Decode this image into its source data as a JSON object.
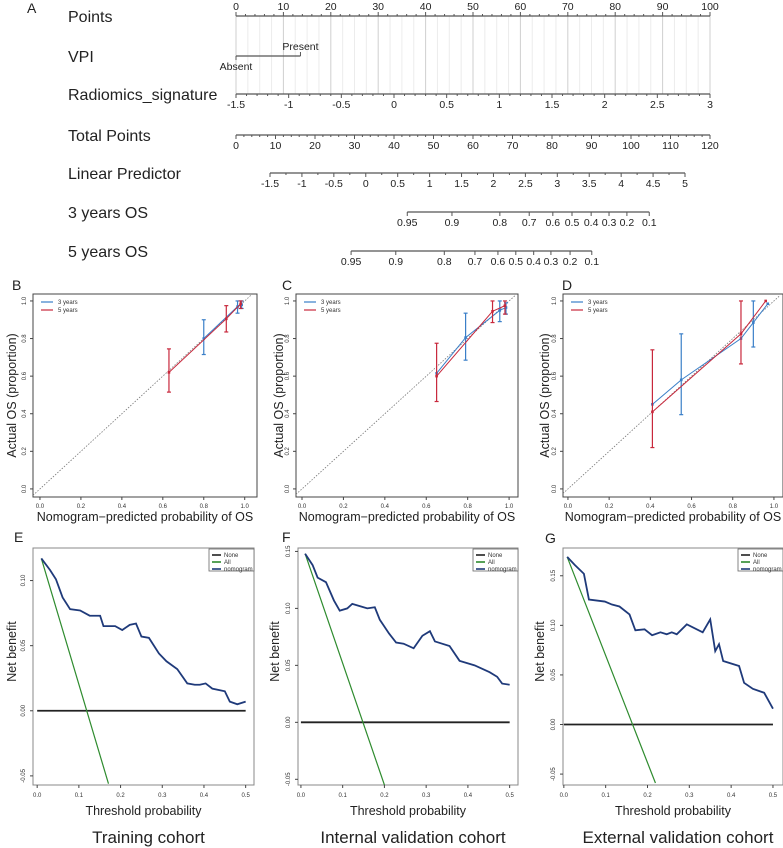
{
  "panel_labels": [
    "A",
    "B",
    "C",
    "D",
    "E",
    "F",
    "G"
  ],
  "chart_data": [
    {
      "type": "nomogram",
      "panel": "A",
      "rows": [
        {
          "name": "Points",
          "min": 0,
          "max": 100,
          "ticks": [
            "0",
            "10",
            "20",
            "30",
            "40",
            "50",
            "60",
            "70",
            "80",
            "90",
            "100"
          ]
        },
        {
          "name": "VPI",
          "levels": [
            {
              "label": "Absent",
              "points": 0
            },
            {
              "label": "Present",
              "points": 13.6
            }
          ]
        },
        {
          "name": "Radiomics_signature",
          "min": -1.5,
          "max": 3,
          "ticks": [
            "-1.5",
            "-1",
            "-0.5",
            "0",
            "0.5",
            "1",
            "1.5",
            "2",
            "2.5",
            "3"
          ]
        },
        {
          "name": "Total Points",
          "min": 0,
          "max": 120,
          "ticks": [
            "0",
            "10",
            "20",
            "30",
            "40",
            "50",
            "60",
            "70",
            "80",
            "90",
            "100",
            "110",
            "120"
          ]
        },
        {
          "name": "Linear Predictor",
          "min": -1.5,
          "max": 5,
          "ticks": [
            "-1.5",
            "-1",
            "-0.5",
            "0",
            "0.5",
            "1",
            "1.5",
            "2",
            "2.5",
            "3",
            "3.5",
            "4",
            "4.5",
            "5"
          ]
        },
        {
          "name": "3 years OS",
          "ticks": [
            {
              "label": "0.95",
              "lp": 0.65
            },
            {
              "label": "0.9",
              "lp": 1.35
            },
            {
              "label": "0.8",
              "lp": 2.1
            },
            {
              "label": "0.7",
              "lp": 2.56
            },
            {
              "label": "0.6",
              "lp": 2.93
            },
            {
              "label": "0.5",
              "lp": 3.23
            },
            {
              "label": "0.4",
              "lp": 3.53
            },
            {
              "label": "0.3",
              "lp": 3.81
            },
            {
              "label": "0.2",
              "lp": 4.09
            },
            {
              "label": "0.1",
              "lp": 4.44
            }
          ]
        },
        {
          "name": "5 years OS",
          "ticks": [
            {
              "label": "0.95",
              "lp": -0.23
            },
            {
              "label": "0.9",
              "lp": 0.47
            },
            {
              "label": "0.8",
              "lp": 1.23
            },
            {
              "label": "0.7",
              "lp": 1.71
            },
            {
              "label": "0.6",
              "lp": 2.07
            },
            {
              "label": "0.5",
              "lp": 2.35
            },
            {
              "label": "0.4",
              "lp": 2.63
            },
            {
              "label": "0.3",
              "lp": 2.9
            },
            {
              "label": "0.2",
              "lp": 3.2
            },
            {
              "label": "0.1",
              "lp": 3.54
            }
          ]
        }
      ]
    },
    {
      "type": "scatter",
      "panel": "B",
      "xlabel": "Nomogram−predicted probability of OS",
      "ylabel": "Actual OS (proportion)",
      "xlim": [
        -0.034,
        1.06
      ],
      "ylim": [
        -0.043,
        1.037
      ],
      "xticks": [
        "0.0",
        "0.2",
        "0.4",
        "0.6",
        "0.8",
        "1.0"
      ],
      "yticks": [
        "0.0",
        "0.2",
        "0.4",
        "0.6",
        "0.8",
        "1.0"
      ],
      "legend": [
        "3 years",
        "5 years"
      ],
      "legend_position": "top-left",
      "series": [
        {
          "name": "3 years",
          "color": "#3a7fc8",
          "points": [
            {
              "x": 0.8,
              "y": 0.8,
              "lo": 0.715,
              "hi": 0.9
            },
            {
              "x": 0.965,
              "y": 0.97,
              "lo": 0.935,
              "hi": 1.0
            },
            {
              "x": 0.985,
              "y": 0.98,
              "lo": 0.96,
              "hi": 1.0
            }
          ]
        },
        {
          "name": "5 years",
          "color": "#c8283c",
          "points": [
            {
              "x": 0.63,
              "y": 0.62,
              "lo": 0.515,
              "hi": 0.745
            },
            {
              "x": 0.91,
              "y": 0.905,
              "lo": 0.835,
              "hi": 0.975
            },
            {
              "x": 0.98,
              "y": 0.985,
              "lo": 0.96,
              "hi": 1.0
            }
          ]
        }
      ]
    },
    {
      "type": "scatter",
      "panel": "C",
      "xlabel": "Nomogram−predicted probability of OS",
      "ylabel": "Actual OS (proportion)",
      "xlim": [
        -0.029,
        1.043
      ],
      "ylim": [
        -0.043,
        1.037
      ],
      "xticks": [
        "0.0",
        "0.2",
        "0.4",
        "0.6",
        "0.8",
        "1.0"
      ],
      "yticks": [
        "0.0",
        "0.2",
        "0.4",
        "0.6",
        "0.8",
        "1.0"
      ],
      "legend": [
        "3 years",
        "5 years"
      ],
      "legend_position": "top-left",
      "series": [
        {
          "name": "3 years",
          "color": "#3a7fc8",
          "points": [
            {
              "x": 0.65,
              "y": 0.615
            },
            {
              "x": 0.79,
              "y": 0.805,
              "lo": 0.685,
              "hi": 0.935
            },
            {
              "x": 0.955,
              "y": 0.95,
              "lo": 0.89,
              "hi": 1.0
            },
            {
              "x": 0.985,
              "y": 0.965,
              "lo": 0.93,
              "hi": 0.99
            }
          ]
        },
        {
          "name": "5 years",
          "color": "#c8283c",
          "points": [
            {
              "x": 0.65,
              "y": 0.6,
              "lo": 0.465,
              "hi": 0.775
            },
            {
              "x": 0.92,
              "y": 0.945,
              "lo": 0.885,
              "hi": 1.0
            },
            {
              "x": 0.98,
              "y": 0.975,
              "lo": 0.93,
              "hi": 1.0
            }
          ]
        }
      ]
    },
    {
      "type": "scatter",
      "panel": "D",
      "xlabel": "Nomogram−predicted probability of OS",
      "ylabel": "Actual OS (proportion)",
      "xlim": [
        -0.024,
        1.044
      ],
      "ylim": [
        -0.043,
        1.037
      ],
      "xticks": [
        "0.0",
        "0.2",
        "0.4",
        "0.6",
        "0.8",
        "1.0"
      ],
      "yticks": [
        "0.0",
        "0.2",
        "0.4",
        "0.6",
        "0.8",
        "1.0"
      ],
      "legend": [
        "3 years",
        "5 years"
      ],
      "legend_position": "top-left",
      "series": [
        {
          "name": "3 years",
          "color": "#3a7fc8",
          "points": [
            {
              "x": 0.41,
              "y": 0.45
            },
            {
              "x": 0.55,
              "y": 0.58,
              "lo": 0.395,
              "hi": 0.825
            },
            {
              "x": 0.84,
              "y": 0.8
            },
            {
              "x": 0.9,
              "y": 0.885,
              "lo": 0.755,
              "hi": 1.0
            },
            {
              "x": 0.97,
              "y": 0.985
            }
          ]
        },
        {
          "name": "5 years",
          "color": "#c8283c",
          "points": [
            {
              "x": 0.41,
              "y": 0.41,
              "lo": 0.22,
              "hi": 0.74
            },
            {
              "x": 0.84,
              "y": 0.825,
              "lo": 0.665,
              "hi": 1.0
            },
            {
              "x": 0.96,
              "y": 1.0
            }
          ]
        }
      ]
    },
    {
      "type": "line",
      "panel": "E",
      "caption": "Training cohort",
      "xlabel": "Threshold probability",
      "ylabel": "Net benefit",
      "xlim": [
        -0.01,
        0.52
      ],
      "ylim": [
        -0.057,
        0.125
      ],
      "xticks": [
        "0.0",
        "0.1",
        "0.2",
        "0.3",
        "0.4",
        "0.5"
      ],
      "yticks": [
        "-0.05",
        "0.00",
        "0.05",
        "0.10"
      ],
      "legend_position": "top-right",
      "series": [
        {
          "name": "None",
          "color": "#222222",
          "points": [
            [
              0,
              0
            ],
            [
              0.5,
              0
            ]
          ]
        },
        {
          "name": "All",
          "color": "#2e8b2e",
          "points": [
            [
              0.01,
              0.117
            ],
            [
              0.171,
              -0.056
            ]
          ]
        },
        {
          "name": "nomogram",
          "color": "#1f3a7a",
          "points": [
            [
              0.01,
              0.117
            ],
            [
              0.031,
              0.108
            ],
            [
              0.045,
              0.101
            ],
            [
              0.061,
              0.087
            ],
            [
              0.079,
              0.078
            ],
            [
              0.103,
              0.077
            ],
            [
              0.126,
              0.073
            ],
            [
              0.151,
              0.073
            ],
            [
              0.159,
              0.065
            ],
            [
              0.187,
              0.065
            ],
            [
              0.204,
              0.062
            ],
            [
              0.222,
              0.066
            ],
            [
              0.237,
              0.067
            ],
            [
              0.25,
              0.057
            ],
            [
              0.268,
              0.056
            ],
            [
              0.292,
              0.044
            ],
            [
              0.31,
              0.038
            ],
            [
              0.336,
              0.032
            ],
            [
              0.36,
              0.021
            ],
            [
              0.378,
              0.02
            ],
            [
              0.39,
              0.02
            ],
            [
              0.404,
              0.021
            ],
            [
              0.42,
              0.017
            ],
            [
              0.45,
              0.015
            ],
            [
              0.462,
              0.007
            ],
            [
              0.48,
              0.005
            ],
            [
              0.5,
              0.007
            ]
          ]
        }
      ]
    },
    {
      "type": "line",
      "panel": "F",
      "caption": "Internal validation cohort",
      "xlabel": "Threshold probability",
      "ylabel": "Net benefit",
      "xlim": [
        -0.007,
        0.52
      ],
      "ylim": [
        -0.055,
        0.153
      ],
      "xticks": [
        "0.0",
        "0.1",
        "0.2",
        "0.3",
        "0.4",
        "0.5"
      ],
      "yticks": [
        "-0.05",
        "0.00",
        "0.05",
        "0.10",
        "0.15"
      ],
      "legend_position": "top-right",
      "series": [
        {
          "name": "None",
          "color": "#222222",
          "points": [
            [
              0,
              0
            ],
            [
              0.5,
              0
            ]
          ]
        },
        {
          "name": "All",
          "color": "#2e8b2e",
          "points": [
            [
              0.01,
              0.148
            ],
            [
              0.201,
              -0.056
            ]
          ]
        },
        {
          "name": "nomogram",
          "color": "#1f3a7a",
          "points": [
            [
              0.01,
              0.148
            ],
            [
              0.028,
              0.138
            ],
            [
              0.04,
              0.127
            ],
            [
              0.06,
              0.123
            ],
            [
              0.079,
              0.107
            ],
            [
              0.093,
              0.098
            ],
            [
              0.111,
              0.1
            ],
            [
              0.123,
              0.104
            ],
            [
              0.141,
              0.102
            ],
            [
              0.159,
              0.1
            ],
            [
              0.177,
              0.101
            ],
            [
              0.189,
              0.09
            ],
            [
              0.211,
              0.078
            ],
            [
              0.228,
              0.07
            ],
            [
              0.246,
              0.069
            ],
            [
              0.27,
              0.065
            ],
            [
              0.291,
              0.076
            ],
            [
              0.309,
              0.08
            ],
            [
              0.321,
              0.071
            ],
            [
              0.356,
              0.067
            ],
            [
              0.38,
              0.054
            ],
            [
              0.416,
              0.05
            ],
            [
              0.452,
              0.044
            ],
            [
              0.47,
              0.04
            ],
            [
              0.482,
              0.034
            ],
            [
              0.5,
              0.033
            ]
          ]
        }
      ]
    },
    {
      "type": "line",
      "panel": "G",
      "caption": "External  validation cohort",
      "xlabel": "Threshold probability",
      "ylabel": "Net benefit",
      "xlim": [
        -0.002,
        0.524
      ],
      "ylim": [
        -0.061,
        0.178
      ],
      "xticks": [
        "0.0",
        "0.1",
        "0.2",
        "0.3",
        "0.4",
        "0.5"
      ],
      "yticks": [
        "-0.05",
        "0.00",
        "0.05",
        "0.10",
        "0.15"
      ],
      "legend_position": "top-right",
      "series": [
        {
          "name": "None",
          "color": "#222222",
          "points": [
            [
              0,
              0
            ],
            [
              0.5,
              0
            ]
          ]
        },
        {
          "name": "All",
          "color": "#2e8b2e",
          "points": [
            [
              0.008,
              0.169
            ],
            [
              0.219,
              -0.059
            ]
          ]
        },
        {
          "name": "nomogram",
          "color": "#1f3a7a",
          "points": [
            [
              0.008,
              0.169
            ],
            [
              0.026,
              0.161
            ],
            [
              0.048,
              0.152
            ],
            [
              0.06,
              0.126
            ],
            [
              0.098,
              0.124
            ],
            [
              0.115,
              0.121
            ],
            [
              0.133,
              0.119
            ],
            [
              0.157,
              0.111
            ],
            [
              0.171,
              0.095
            ],
            [
              0.193,
              0.096
            ],
            [
              0.211,
              0.09
            ],
            [
              0.231,
              0.093
            ],
            [
              0.246,
              0.091
            ],
            [
              0.258,
              0.093
            ],
            [
              0.27,
              0.091
            ],
            [
              0.294,
              0.101
            ],
            [
              0.332,
              0.093
            ],
            [
              0.35,
              0.106
            ],
            [
              0.362,
              0.074
            ],
            [
              0.371,
              0.081
            ],
            [
              0.381,
              0.064
            ],
            [
              0.419,
              0.059
            ],
            [
              0.431,
              0.042
            ],
            [
              0.452,
              0.036
            ],
            [
              0.479,
              0.032
            ],
            [
              0.5,
              0.016
            ]
          ]
        }
      ]
    }
  ]
}
